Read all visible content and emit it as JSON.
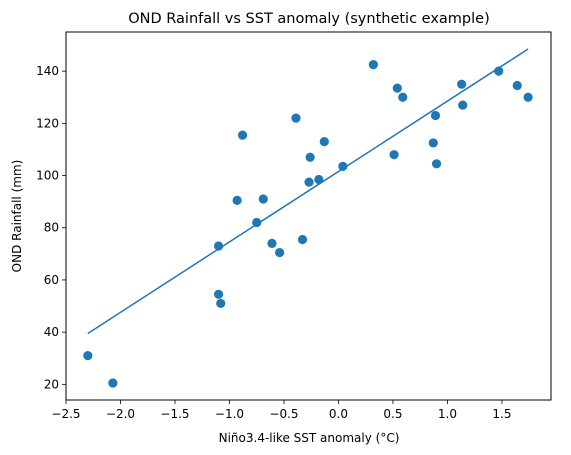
{
  "chart_data": {
    "type": "scatter",
    "title": "OND Rainfall vs SST anomaly (synthetic example)",
    "xlabel": "Niño3.4-like SST anomaly (°C)",
    "ylabel": "OND Rainfall (mm)",
    "xlim": [
      -2.5,
      1.95
    ],
    "ylim": [
      14,
      155
    ],
    "xticks": [
      -2.5,
      -2.0,
      -1.5,
      -1.0,
      -0.5,
      0.0,
      0.5,
      1.0,
      1.5
    ],
    "xtick_labels": [
      "−2.5",
      "−2.0",
      "−1.5",
      "−1.0",
      "−0.5",
      "0.0",
      "0.5",
      "1.0",
      "1.5"
    ],
    "yticks": [
      20,
      40,
      60,
      80,
      100,
      120,
      140
    ],
    "ytick_labels": [
      "20",
      "40",
      "60",
      "80",
      "100",
      "120",
      "140"
    ],
    "grid": false,
    "point_color": "#1f77b4",
    "line_color": "#1f77b4",
    "points": [
      {
        "x": -2.3,
        "y": 31
      },
      {
        "x": -2.07,
        "y": 20.5
      },
      {
        "x": -1.1,
        "y": 54.5
      },
      {
        "x": -1.08,
        "y": 51
      },
      {
        "x": -1.1,
        "y": 73
      },
      {
        "x": -0.93,
        "y": 90.5
      },
      {
        "x": -0.88,
        "y": 115.5
      },
      {
        "x": -0.75,
        "y": 82
      },
      {
        "x": -0.69,
        "y": 91
      },
      {
        "x": -0.61,
        "y": 74
      },
      {
        "x": -0.54,
        "y": 70.5
      },
      {
        "x": -0.39,
        "y": 122
      },
      {
        "x": -0.33,
        "y": 75.5
      },
      {
        "x": -0.26,
        "y": 107
      },
      {
        "x": -0.27,
        "y": 97.5
      },
      {
        "x": -0.18,
        "y": 98.5
      },
      {
        "x": -0.13,
        "y": 113
      },
      {
        "x": 0.04,
        "y": 103.5
      },
      {
        "x": 0.32,
        "y": 142.5
      },
      {
        "x": 0.51,
        "y": 108
      },
      {
        "x": 0.54,
        "y": 133.5
      },
      {
        "x": 0.59,
        "y": 130
      },
      {
        "x": 0.87,
        "y": 112.5
      },
      {
        "x": 0.89,
        "y": 123
      },
      {
        "x": 0.9,
        "y": 104.5
      },
      {
        "x": 1.13,
        "y": 135
      },
      {
        "x": 1.14,
        "y": 127
      },
      {
        "x": 1.47,
        "y": 140
      },
      {
        "x": 1.64,
        "y": 134.5
      },
      {
        "x": 1.74,
        "y": 130
      }
    ],
    "fit_line": {
      "x": [
        -2.3,
        1.74
      ],
      "y": [
        39.5,
        148.5
      ]
    }
  }
}
